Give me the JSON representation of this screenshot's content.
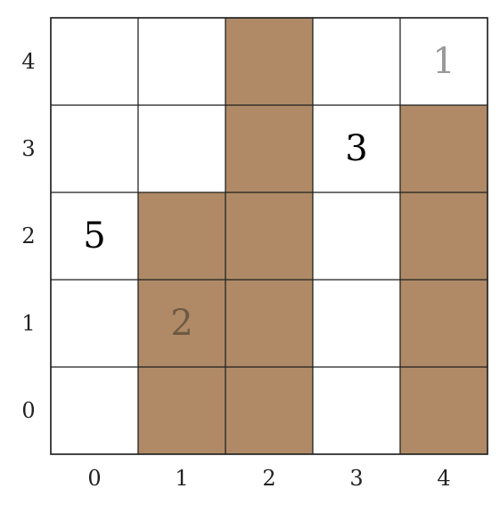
{
  "puzzle": {
    "rows": 5,
    "cols": 5,
    "colors": {
      "shaded": "#b08a66",
      "empty": "#ffffff",
      "grid_line": "#222222",
      "clue_on_empty": "#000000",
      "clue_faded": "#999999",
      "clue_on_shaded": "#6e5a44"
    },
    "shaded_cells": [
      [
        0,
        1
      ],
      [
        0,
        2
      ],
      [
        0,
        4
      ],
      [
        1,
        1
      ],
      [
        1,
        2
      ],
      [
        1,
        4
      ],
      [
        2,
        1
      ],
      [
        2,
        2
      ],
      [
        2,
        4
      ],
      [
        3,
        2
      ],
      [
        3,
        4
      ],
      [
        4,
        2
      ]
    ],
    "clues": [
      {
        "row": 4,
        "col": 4,
        "value": "1",
        "style": "faded"
      },
      {
        "row": 3,
        "col": 3,
        "value": "3",
        "style": "normal"
      },
      {
        "row": 2,
        "col": 0,
        "value": "5",
        "style": "normal"
      },
      {
        "row": 1,
        "col": 1,
        "value": "2",
        "style": "on-shaded"
      }
    ],
    "x_axis_labels": [
      "0",
      "1",
      "2",
      "3",
      "4"
    ],
    "y_axis_labels": [
      "0",
      "1",
      "2",
      "3",
      "4"
    ]
  }
}
